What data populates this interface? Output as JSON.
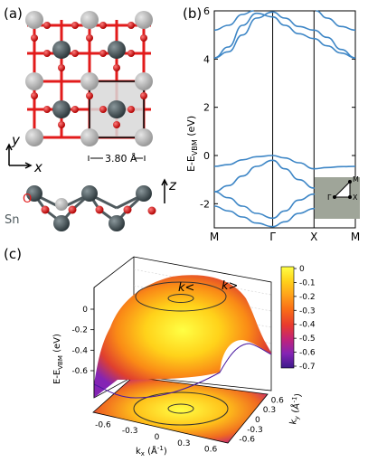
{
  "panel_labels": {
    "a": "(a)",
    "b": "(b)",
    "c": "(c)"
  },
  "panel_a": {
    "axis_x": "x",
    "axis_y": "y",
    "axis_z": "z",
    "lattice_constant": "3.80 Å",
    "atom_O": "O",
    "atom_Sn": "Sn",
    "colors": {
      "sn_dark": "#4f5a5e",
      "sn_light": "#b8b8b8",
      "oxygen": "#e21b1b",
      "cell_fill": "#d8d8d8"
    }
  },
  "chart_data": [
    {
      "type": "line",
      "panel": "b",
      "ylabel": "E-E_VBM (eV)",
      "ylim": [
        -3,
        6
      ],
      "yticks": [
        "-2",
        "0",
        "2",
        "4",
        "6"
      ],
      "k_labels": [
        "M",
        "Γ",
        "X",
        "M"
      ],
      "k_positions": [
        0,
        0.414,
        0.707,
        1.0
      ],
      "series": [
        {
          "values": [
            [
              0,
              -0.45
            ],
            [
              0.1,
              -0.38
            ],
            [
              0.2,
              -0.18
            ],
            [
              0.3,
              -0.05
            ],
            [
              0.414,
              0.0
            ],
            [
              0.5,
              -0.1
            ],
            [
              0.6,
              -0.3
            ],
            [
              0.707,
              -0.55
            ],
            [
              0.8,
              -0.5
            ],
            [
              0.9,
              -0.46
            ],
            [
              1.0,
              -0.45
            ]
          ]
        },
        {
          "values": [
            [
              0,
              -1.5
            ],
            [
              0.1,
              -1.25
            ],
            [
              0.2,
              -0.85
            ],
            [
              0.3,
              -0.45
            ],
            [
              0.414,
              -0.2
            ],
            [
              0.5,
              -0.55
            ],
            [
              0.6,
              -1.0
            ],
            [
              0.707,
              -1.35
            ],
            [
              0.8,
              -1.45
            ],
            [
              0.9,
              -1.5
            ],
            [
              1.0,
              -1.5
            ]
          ]
        },
        {
          "values": [
            [
              0,
              -1.5
            ],
            [
              0.1,
              -1.75
            ],
            [
              0.2,
              -2.1
            ],
            [
              0.3,
              -2.4
            ],
            [
              0.414,
              -2.6
            ],
            [
              0.5,
              -2.3
            ],
            [
              0.6,
              -1.85
            ],
            [
              0.707,
              -1.6
            ],
            [
              0.8,
              -1.75
            ],
            [
              0.9,
              -1.62
            ],
            [
              1.0,
              -1.5
            ]
          ]
        },
        {
          "values": [
            [
              0,
              -2.1
            ],
            [
              0.1,
              -2.3
            ],
            [
              0.2,
              -2.55
            ],
            [
              0.3,
              -2.8
            ],
            [
              0.414,
              -2.95
            ],
            [
              0.5,
              -2.75
            ],
            [
              0.6,
              -2.4
            ],
            [
              0.707,
              -2.2
            ],
            [
              0.8,
              -2.45
            ],
            [
              0.9,
              -2.25
            ],
            [
              1.0,
              -2.1
            ]
          ]
        },
        {
          "values": [
            [
              0,
              4.05
            ],
            [
              0.1,
              4.3
            ],
            [
              0.2,
              5.0
            ],
            [
              0.3,
              5.7
            ],
            [
              0.414,
              5.95
            ],
            [
              0.5,
              5.7
            ],
            [
              0.6,
              5.35
            ],
            [
              0.707,
              5.2
            ],
            [
              0.8,
              4.9
            ],
            [
              0.9,
              4.4
            ],
            [
              1.0,
              4.05
            ]
          ]
        },
        {
          "values": [
            [
              0,
              4.05
            ],
            [
              0.1,
              4.5
            ],
            [
              0.2,
              5.4
            ],
            [
              0.3,
              5.9
            ],
            [
              0.414,
              5.75
            ],
            [
              0.5,
              5.4
            ],
            [
              0.6,
              5.05
            ],
            [
              0.707,
              4.85
            ],
            [
              0.8,
              4.55
            ],
            [
              0.9,
              4.25
            ],
            [
              1.0,
              4.05
            ]
          ]
        },
        {
          "values": [
            [
              0,
              5.2
            ],
            [
              0.1,
              5.4
            ],
            [
              0.2,
              5.85
            ],
            [
              0.28,
              6.0
            ]
          ]
        },
        {
          "values": [
            [
              0.72,
              6.0
            ],
            [
              0.8,
              5.7
            ],
            [
              0.9,
              5.35
            ],
            [
              1.0,
              5.2
            ]
          ]
        }
      ],
      "inset_labels": [
        "M",
        "Γ",
        "X"
      ]
    },
    {
      "type": "heatmap",
      "panel": "c",
      "zlabel": "E-E_VBM (eV)",
      "zticks": [
        "0",
        "-0.2",
        "-0.4",
        "-0.6"
      ],
      "xlabel": "k_x (Å⁻¹)",
      "ylabel": "k_y (Å⁻¹)",
      "xticks": [
        "-0.6",
        "-0.3",
        "0",
        "0.3",
        "0.6"
      ],
      "yticks": [
        "0.6",
        "0.3",
        "0",
        "-0.3",
        "-0.6"
      ],
      "contour_labels": [
        "k<",
        "k>"
      ],
      "colorbar": {
        "ticks": [
          "0",
          "-0.1",
          "-0.2",
          "-0.3",
          "-0.4",
          "-0.5",
          "-0.6",
          "-0.7"
        ],
        "range": [
          -0.7,
          0.0
        ],
        "colors": [
          "#ffff44",
          "#ffd21a",
          "#ffa21a",
          "#fa6e16",
          "#e83a2e",
          "#c0237a",
          "#8424b4",
          "#3c1a8a"
        ]
      }
    }
  ]
}
